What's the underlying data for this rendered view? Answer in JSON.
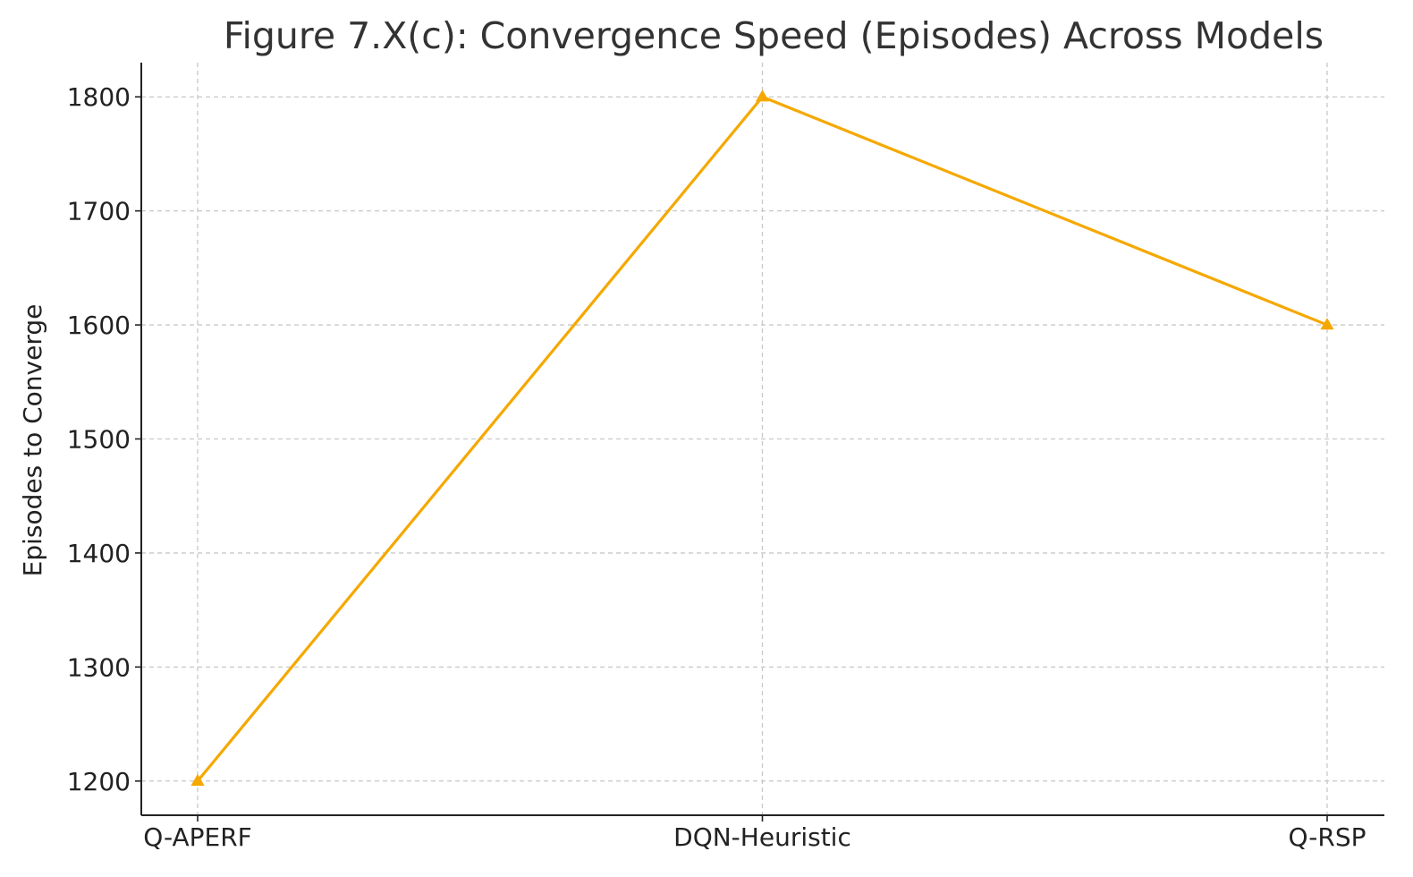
{
  "chart_data": {
    "type": "line",
    "title": "Figure 7.X(c): Convergence Speed (Episodes) Across Models",
    "xlabel": "",
    "ylabel": "Episodes to Converge",
    "categories": [
      "Q-APERF",
      "DQN-Heuristic",
      "Q-RSP"
    ],
    "series": [
      {
        "values": [
          1200,
          1800,
          1600
        ],
        "color": "#f5a800",
        "marker": "triangle"
      }
    ],
    "yticks": [
      1200,
      1300,
      1400,
      1500,
      1600,
      1700,
      1800
    ],
    "ylim": [
      1170,
      1830
    ],
    "grid": true,
    "legend": "none"
  }
}
